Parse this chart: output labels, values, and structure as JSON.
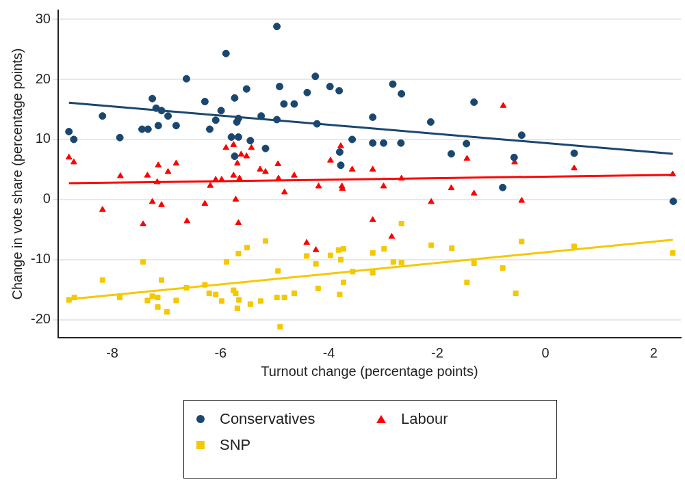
{
  "chart_data": {
    "type": "scatter",
    "xlabel": "Turnout change (percentage points)",
    "ylabel": "Change in vote share (percentage points)",
    "xlim": [
      -9.0,
      2.5
    ],
    "xticks": [
      -8,
      -6,
      -4,
      -2,
      0,
      2
    ],
    "ylim": [
      -23,
      31.5
    ],
    "yticks": [
      -20,
      -10,
      0,
      10,
      20,
      30
    ],
    "grid": "y",
    "legend": "bottom",
    "series": [
      {
        "name": "Conservatives",
        "color": "#1a476f",
        "marker": "circle",
        "x": [
          -8.8,
          -8.71,
          -8.18,
          -7.86,
          -7.45,
          -7.34,
          -7.26,
          -7.19,
          -7.15,
          -7.09,
          -6.97,
          -6.82,
          -6.63,
          -6.29,
          -6.2,
          -6.09,
          -5.99,
          -5.9,
          -5.8,
          -5.67,
          -5.74,
          -5.74,
          -5.7,
          -5.67,
          -5.52,
          -5.45,
          -5.17,
          -5.25,
          -4.96,
          -4.96,
          -4.91,
          -4.83,
          -4.64,
          -4.4,
          -4.25,
          -4.22,
          -3.98,
          -3.81,
          -3.8,
          -3.78,
          -3.57,
          -3.19,
          -3.19,
          -2.99,
          -2.67,
          -2.82,
          -2.66,
          -2.12,
          -1.74,
          -1.46,
          -1.32,
          -0.79,
          -0.58,
          -0.44,
          0.53,
          2.36
        ],
        "values": [
          11.3,
          10.0,
          13.9,
          10.3,
          11.7,
          11.7,
          16.8,
          15.2,
          12.3,
          14.8,
          13.9,
          12.3,
          20.1,
          16.3,
          11.7,
          13.2,
          14.8,
          24.3,
          10.4,
          10.4,
          7.2,
          16.9,
          12.9,
          13.5,
          18.4,
          9.8,
          8.5,
          13.9,
          28.8,
          13.3,
          18.8,
          15.9,
          15.9,
          17.8,
          20.5,
          12.6,
          18.8,
          18.1,
          7.9,
          5.7,
          10.0,
          9.4,
          13.7,
          9.4,
          9.4,
          19.2,
          17.6,
          12.9,
          7.6,
          9.3,
          16.2,
          2.0,
          7.0,
          10.7,
          7.7,
          -0.3
        ]
      },
      {
        "name": "Labour",
        "color": "#ff0000",
        "marker": "triangle",
        "x": [
          -8.8,
          -8.71,
          -7.85,
          -7.35,
          -7.17,
          -7.15,
          -6.97,
          -6.82,
          -6.19,
          -6.09,
          -5.98,
          -5.9,
          -5.76,
          -5.76,
          -5.69,
          -5.65,
          -5.62,
          -5.52,
          -5.43,
          -5.27,
          -5.17,
          -4.94,
          -4.93,
          -4.82,
          -4.64,
          -4.19,
          -3.97,
          -3.78,
          -3.76,
          -3.75,
          -3.57,
          -3.19,
          -2.99,
          -2.66,
          -1.74,
          -1.45,
          -1.32,
          -0.78,
          -0.57,
          0.53,
          2.35,
          -8.18,
          -7.43,
          -7.26,
          -7.09,
          -6.62,
          -5.72,
          -6.29,
          -5.67,
          -4.41,
          -4.24,
          -3.19,
          -2.84,
          -2.11,
          -0.44
        ],
        "values": [
          7.0,
          6.2,
          3.9,
          4.0,
          2.9,
          5.7,
          4.6,
          6.0,
          2.3,
          3.3,
          3.3,
          8.6,
          9.1,
          4.0,
          6.0,
          3.5,
          7.5,
          7.2,
          8.6,
          5.0,
          4.6,
          5.9,
          3.5,
          1.2,
          4.0,
          2.2,
          6.5,
          8.9,
          2.2,
          1.8,
          5.0,
          5.0,
          2.2,
          3.5,
          1.9,
          6.8,
          1.0,
          15.6,
          6.2,
          5.2,
          4.2,
          -1.7,
          -4.1,
          -0.4,
          -0.9,
          -3.6,
          0.0,
          -0.7,
          -3.9,
          -7.2,
          -8.4,
          -3.4,
          -6.2,
          -0.4,
          -0.2
        ]
      },
      {
        "name": "SNP",
        "color": "#f5c800",
        "marker": "square",
        "x": [
          -8.8,
          -8.7,
          -8.18,
          -7.86,
          -7.43,
          -7.35,
          -7.26,
          -7.16,
          -7.16,
          -7.09,
          -6.99,
          -6.82,
          -6.63,
          -6.29,
          -6.21,
          -6.09,
          -5.98,
          -5.89,
          -5.76,
          -5.72,
          -5.69,
          -5.66,
          -5.67,
          -5.51,
          -5.45,
          -5.26,
          -5.17,
          -4.94,
          -4.9,
          -4.96,
          -4.82,
          -4.64,
          -4.41,
          -4.24,
          -4.2,
          -3.97,
          -3.82,
          -3.73,
          -3.78,
          -3.73,
          -3.8,
          -3.56,
          -3.19,
          -3.19,
          -2.98,
          -2.81,
          -2.66,
          -2.66,
          -2.11,
          -1.73,
          -1.45,
          -1.32,
          -0.79,
          -0.55,
          -0.44,
          0.53,
          2.35
        ],
        "values": [
          -16.7,
          -16.3,
          -13.4,
          -16.3,
          -10.4,
          -16.8,
          -16.1,
          -16.3,
          -17.9,
          -13.4,
          -18.7,
          -16.8,
          -14.7,
          -14.2,
          -15.6,
          -15.8,
          -16.9,
          -10.4,
          -15.1,
          -15.6,
          -18.1,
          -16.7,
          -9.0,
          -8.0,
          -17.4,
          -16.9,
          -6.9,
          -11.9,
          -21.2,
          -16.3,
          -16.3,
          -15.6,
          -9.4,
          -10.7,
          -14.8,
          -9.3,
          -8.4,
          -8.2,
          -10.0,
          -13.8,
          -15.8,
          -12.0,
          -8.9,
          -12.2,
          -8.2,
          -10.4,
          -10.5,
          -4.0,
          -7.6,
          -8.1,
          -13.8,
          -10.6,
          -11.4,
          -15.6,
          -7.0,
          -7.8,
          -8.9
        ]
      },
      {
        "type": "line",
        "color": "#1a476f",
        "marker": "none",
        "x": [
          -8.8,
          2.35
        ],
        "values": [
          16.1,
          7.6
        ]
      },
      {
        "type": "line",
        "color": "#ff0000",
        "marker": "none",
        "x": [
          -8.8,
          2.35
        ],
        "values": [
          2.7,
          4.1
        ]
      },
      {
        "type": "line",
        "color": "#f5c800",
        "marker": "none",
        "x": [
          -8.8,
          2.35
        ],
        "values": [
          -16.6,
          -6.7
        ]
      }
    ]
  }
}
